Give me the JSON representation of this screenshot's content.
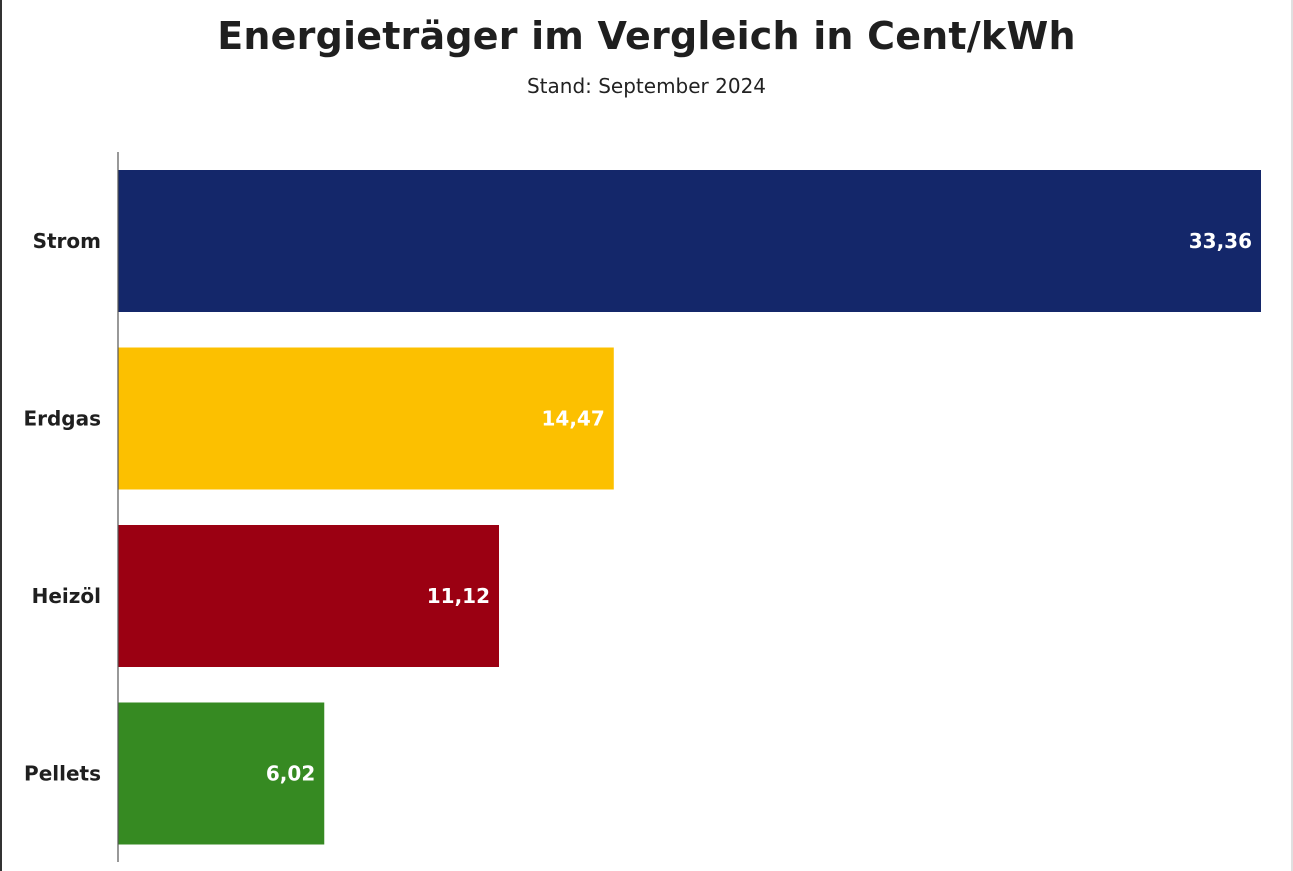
{
  "chart_data": {
    "type": "bar",
    "orientation": "horizontal",
    "title": "Energieträger im Vergleich in Cent/kWh",
    "subtitle": "Stand: September 2024",
    "categories": [
      "Strom",
      "Erdgas",
      "Heizöl",
      "Pellets"
    ],
    "values": [
      33.36,
      14.47,
      11.12,
      6.02
    ],
    "value_labels": [
      "33,36",
      "14,47",
      "11,12",
      "6,02"
    ],
    "colors": [
      "#14276a",
      "#fcc000",
      "#9b0012",
      "#368a22"
    ],
    "xlabel": "",
    "ylabel": "",
    "xlim": [
      0,
      33.36
    ],
    "grid": false,
    "legend": "none"
  }
}
